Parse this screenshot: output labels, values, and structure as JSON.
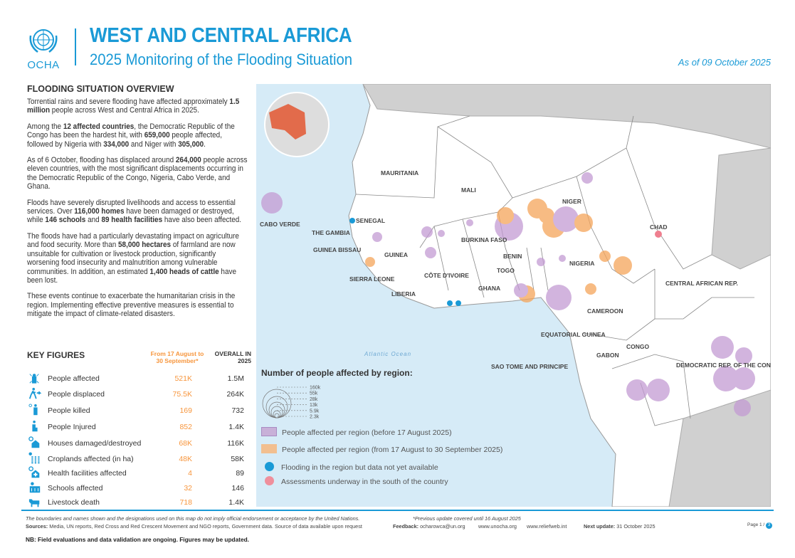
{
  "header": {
    "logo_text": "OCHA",
    "title": "WEST AND CENTRAL AFRICA",
    "subtitle": "2025 Monitoring of the Flooding Situation",
    "as_of": "As of 09 October 2025"
  },
  "overview": {
    "heading": "FLOODING SITUATION OVERVIEW",
    "paragraphs": [
      [
        {
          "t": "Torrential rains and severe flooding have affected approximately "
        },
        {
          "t": "1.5 million",
          "b": true
        },
        {
          "t": " people across West and Central Africa in 2025."
        }
      ],
      [
        {
          "t": "Among the "
        },
        {
          "t": "12 affected countries",
          "b": true
        },
        {
          "t": ", the Democratic Republic of the Congo has been the hardest hit, with "
        },
        {
          "t": "659,000",
          "b": true
        },
        {
          "t": " people affected, followed by Nigeria with "
        },
        {
          "t": "334,000",
          "b": true
        },
        {
          "t": " and Niger with "
        },
        {
          "t": "305,000",
          "b": true
        },
        {
          "t": "."
        }
      ],
      [
        {
          "t": "As of 6 October, flooding has displaced around "
        },
        {
          "t": "264,000",
          "b": true
        },
        {
          "t": " people across eleven countries, with the most significant displacements occurring in the Democratic Republic of the Congo, Nigeria, Cabo Verde, and Ghana."
        }
      ],
      [
        {
          "t": "Floods have severely disrupted livelihoods and access to essential services. Over "
        },
        {
          "t": "116,000 homes",
          "b": true
        },
        {
          "t": " have been damaged or destroyed, while "
        },
        {
          "t": "146 schools",
          "b": true
        },
        {
          "t": " and "
        },
        {
          "t": "89 health facilities",
          "b": true
        },
        {
          "t": " have also been affected."
        }
      ],
      [
        {
          "t": "The floods have had a particularly devastating impact on agriculture and food security. More than "
        },
        {
          "t": "58,000 hectares",
          "b": true
        },
        {
          "t": " of farmland are now unsuitable for cultivation or livestock production, significantly worsening food insecurity and malnutrition among vulnerable communities. In addition, an estimated "
        },
        {
          "t": "1,400 heads of cattle",
          "b": true
        },
        {
          "t": " have been lost."
        }
      ],
      [
        {
          "t": "These events continue to exacerbate the humanitarian crisis in the region. Implementing effective preventive measures is essential to mitigate the impact of climate-related disasters."
        }
      ]
    ]
  },
  "key_figures": {
    "heading": "KEY FIGURES",
    "col_period": "From 17 August to 30 September*",
    "col_overall": "OVERALL IN 2025",
    "rows": [
      {
        "icon": "people-affected-icon",
        "label": "People affected",
        "period": "521K",
        "overall": "1.5M"
      },
      {
        "icon": "people-displaced-icon",
        "label": "People displaced",
        "period": "75.5K",
        "overall": "264K"
      },
      {
        "icon": "people-killed-icon",
        "label": "People killed",
        "period": "169",
        "overall": "732"
      },
      {
        "icon": "people-injured-icon",
        "label": "People Injured",
        "period": "852",
        "overall": "1.4K"
      },
      {
        "icon": "house-damaged-icon",
        "label": "Houses damaged/destroyed",
        "period": "68K",
        "overall": "116K"
      },
      {
        "icon": "cropland-icon",
        "label": "Croplands affected (in ha)",
        "period": "48K",
        "overall": "58K"
      },
      {
        "icon": "health-facility-icon",
        "label": "Health facilities affected",
        "period": "4",
        "overall": "89"
      },
      {
        "icon": "school-icon",
        "label": "Schools affected",
        "period": "32",
        "overall": "146"
      },
      {
        "icon": "livestock-icon",
        "label": "Livestock death",
        "period": "718",
        "overall": "1.4K"
      }
    ]
  },
  "map": {
    "ocean_label": "Atlantic Ocean",
    "countries": [
      "MAURITANIA",
      "MALI",
      "NIGER",
      "CHAD",
      "SENEGAL",
      "THE GAMBIA",
      "GUINEA BISSAU",
      "GUINEA",
      "SIERRA LEONE",
      "LIBERIA",
      "CÔTE D'IVOIRE",
      "BURKINA FASO",
      "GHANA",
      "TOGO",
      "BENIN",
      "NIGERIA",
      "CAMEROON",
      "CENTRAL AFRICAN REP.",
      "EQUATORIAL GUINEA",
      "GABON",
      "CONGO",
      "DEMOCRATIC REP. OF THE CONGO",
      "SAO TOME AND PRINCIPE",
      "CABO VERDE"
    ],
    "colors": {
      "before": "#c39bd3",
      "period": "#f5a55a",
      "no_data": "#1a9ad6",
      "assessment": "#ef7f8f",
      "ocean": "#d6ebf7"
    }
  },
  "legend": {
    "title": "Number of people affected by region:",
    "scale": [
      "160k",
      "55k",
      "28k",
      "13k",
      "5.9k",
      "2.3k"
    ],
    "items": [
      "People affected per region (before 17 August 2025)",
      "People affected per region (from 17 August to 30 September 2025)",
      "Flooding in the region but data not yet available",
      "Assessments underway in the south of the country"
    ]
  },
  "footer": {
    "disclaimer": "The boundaries and names shown and the designations used on this map do not imply official endorsement or acceptance by the United Nations.",
    "previous": "*Previous update covered until 16 August 2025",
    "sources_label": "Sources:",
    "sources": "Media, UN reports, Red Cross and Red Crescent Movement and NGO reports, Government data. Source of data available upon request",
    "feedback_label": "Feedback:",
    "feedback": "ocharowca@un.org",
    "link1": "www.unocha.org",
    "link2": "www.reliefweb.int",
    "next_label": "Next update:",
    "next": "31 October 2025",
    "page": "Page 1 /",
    "page_num": "3",
    "nb": "NB: Field evaluations and data validation are ongoing. Figures may be updated."
  }
}
